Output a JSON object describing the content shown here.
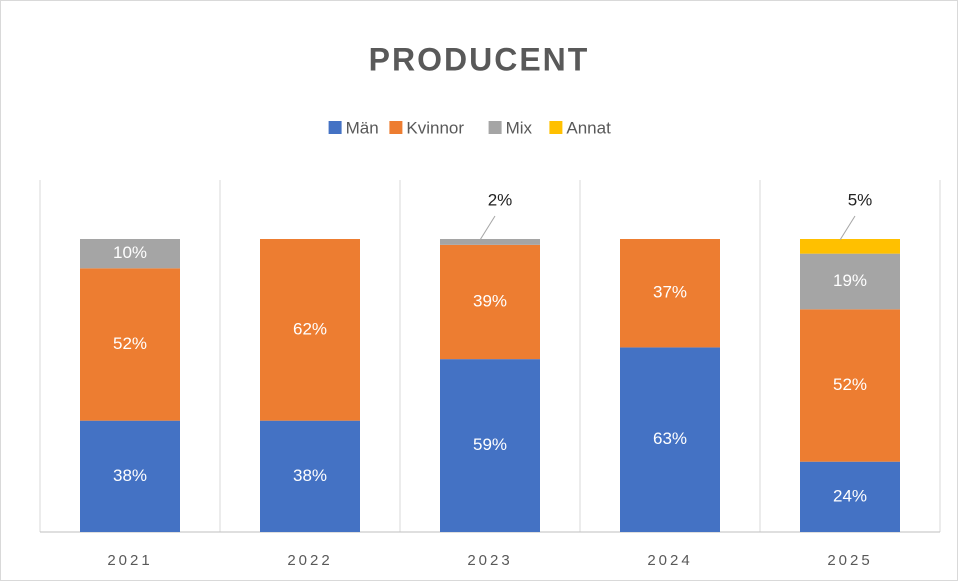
{
  "chart_data": {
    "type": "stacked_bar",
    "title": "PRODUCENT",
    "categories": [
      "2021",
      "2022",
      "2023",
      "2024",
      "2025"
    ],
    "series": [
      {
        "name": "Män",
        "color": "#4472c4",
        "values": [
          38,
          38,
          59,
          63,
          24
        ],
        "value_labels": [
          "38%",
          "38%",
          "59%",
          "63%",
          "24%"
        ]
      },
      {
        "name": "Kvinnor",
        "color": "#ed7d31",
        "values": [
          52,
          62,
          39,
          37,
          52
        ],
        "value_labels": [
          "52%",
          "62%",
          "39%",
          "37%",
          "52%"
        ]
      },
      {
        "name": "Mix",
        "color": "#a5a5a5",
        "values": [
          10,
          null,
          2,
          null,
          19
        ],
        "value_labels": [
          "10%",
          null,
          "2%",
          null,
          "19%"
        ]
      },
      {
        "name": "Annat",
        "color": "#ffc000",
        "values": [
          null,
          null,
          null,
          null,
          5
        ],
        "value_labels": [
          null,
          null,
          null,
          null,
          "5%"
        ]
      }
    ],
    "legend": "top"
  }
}
